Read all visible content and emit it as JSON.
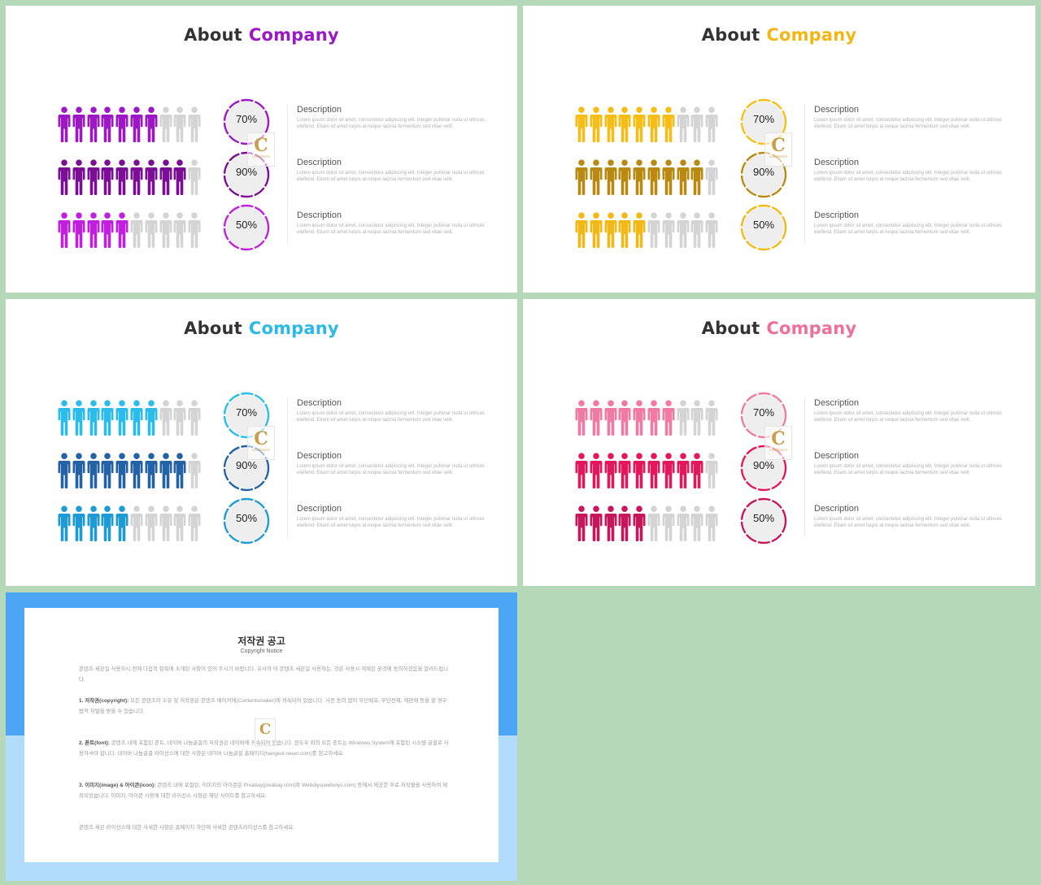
{
  "slides": [
    {
      "title_word1": "About",
      "title_word2": "Company",
      "accent": "#9b18c4",
      "rows": [
        {
          "percent_label": "70%",
          "filled": 7,
          "total": 10,
          "color": "#9b18c4",
          "ring_color": "#9b18c4",
          "description_title": "Description",
          "description_body": "Lorem ipsum dolor sit amet, consectetur adipiscing elit. Integer pulvinar nulla ut ultrices eleifend. Etiam sit amet turpis at neque lacinia fermentum sed vitae velit."
        },
        {
          "percent_label": "90%",
          "filled": 9,
          "total": 10,
          "color": "#7a0f96",
          "ring_color": "#7a0f96",
          "description_title": "Description",
          "description_body": "Lorem ipsum dolor sit amet, consectetur adipiscing elit. Integer pulvinar nulla ut ultrices eleifend. Etiam sit amet turpis at neque lacinia fermentum sed vitae velit."
        },
        {
          "percent_label": "50%",
          "filled": 5,
          "total": 10,
          "color": "#c21ee0",
          "ring_color": "#c21ee0",
          "description_title": "Description",
          "description_body": "Lorem ipsum dolor sit amet, consectetur adipiscing elit. Integer pulvinar nulla ut ultrices eleifend. Etiam sit amet turpis at neque lacinia fermentum sed vitae velit."
        }
      ]
    },
    {
      "title_word1": "About",
      "title_word2": "Company",
      "accent": "#f2b616",
      "rows": [
        {
          "percent_label": "70%",
          "filled": 7,
          "total": 10,
          "color": "#f5bd16",
          "ring_color": "#f5bd16",
          "description_title": "Description",
          "description_body": "Lorem ipsum dolor sit amet, consectetur adipiscing elit. Integer pulvinar nulla ut ultrices eleifend. Etiam sit amet turpis at neque lacinia fermentum sed vitae velit."
        },
        {
          "percent_label": "90%",
          "filled": 9,
          "total": 10,
          "color": "#b88a12",
          "ring_color": "#b88a12",
          "description_title": "Description",
          "description_body": "Lorem ipsum dolor sit amet, consectetur adipiscing elit. Integer pulvinar nulla ut ultrices eleifend. Etiam sit amet turpis at neque lacinia fermentum sed vitae velit."
        },
        {
          "percent_label": "50%",
          "filled": 5,
          "total": 10,
          "color": "#f2b916",
          "ring_color": "#f2b916",
          "description_title": "Description",
          "description_body": "Lorem ipsum dolor sit amet, consectetur adipiscing elit. Integer pulvinar nulla ut ultrices eleifend. Etiam sit amet turpis at neque lacinia fermentum sed vitae velit."
        }
      ]
    },
    {
      "title_word1": "About",
      "title_word2": "Company",
      "accent": "#2bb9ea",
      "rows": [
        {
          "percent_label": "70%",
          "filled": 7,
          "total": 10,
          "color": "#2cbcec",
          "ring_color": "#2cbcec",
          "description_title": "Description",
          "description_body": "Lorem ipsum dolor sit amet, consectetur adipiscing elit. Integer pulvinar nulla ut ultrices eleifend. Etiam sit amet turpis at neque lacinia fermentum sed vitae velit."
        },
        {
          "percent_label": "90%",
          "filled": 9,
          "total": 10,
          "color": "#2462a6",
          "ring_color": "#2462a6",
          "description_title": "Description",
          "description_body": "Lorem ipsum dolor sit amet, consectetur adipiscing elit. Integer pulvinar nulla ut ultrices eleifend. Etiam sit amet turpis at neque lacinia fermentum sed vitae velit."
        },
        {
          "percent_label": "50%",
          "filled": 5,
          "total": 10,
          "color": "#1e9ad4",
          "ring_color": "#1e9ad4",
          "description_title": "Description",
          "description_body": "Lorem ipsum dolor sit amet, consectetur adipiscing elit. Integer pulvinar nulla ut ultrices eleifend. Etiam sit amet turpis at neque lacinia fermentum sed vitae velit."
        }
      ]
    },
    {
      "title_word1": "About",
      "title_word2": "Company",
      "accent": "#ee6f9c",
      "rows": [
        {
          "percent_label": "70%",
          "filled": 7,
          "total": 10,
          "color": "#f07aa3",
          "ring_color": "#f07aa3",
          "description_title": "Description",
          "description_body": "Lorem ipsum dolor sit amet, consectetur adipiscing elit. Integer pulvinar nulla ut ultrices eleifend. Etiam sit amet turpis at neque lacinia fermentum sed vitae velit."
        },
        {
          "percent_label": "90%",
          "filled": 9,
          "total": 10,
          "color": "#e3185c",
          "ring_color": "#e3185c",
          "description_title": "Description",
          "description_body": "Lorem ipsum dolor sit amet, consectetur adipiscing elit. Integer pulvinar nulla ut ultrices eleifend. Etiam sit amet turpis at neque lacinia fermentum sed vitae velit."
        },
        {
          "percent_label": "50%",
          "filled": 5,
          "total": 10,
          "color": "#c8165c",
          "ring_color": "#c8165c",
          "description_title": "Description",
          "description_body": "Lorem ipsum dolor sit amet, consectetur adipiscing elit. Integer pulvinar nulla ut ultrices eleifend. Etiam sit amet turpis at neque lacinia fermentum sed vitae velit."
        }
      ]
    }
  ],
  "inactive_person_color": "#d4d4d4",
  "copyright": {
    "title": "저작권 공고",
    "subtitle": "Copyright Notice",
    "intro": "콘텐츠 세븐일 사용하시 전에 다음의 항목에 소개된 사항이 있어 주시기 바랍니다. 유사하 이 콘텐츠 세븐일 사용하는, 것은 사용시 게재된 본것에 동의하셨음을 알려드립니다.",
    "p1_head": "1. 저작권(copyright):",
    "p1_body": "모든 콘텐츠의 소유 및 저작권은 콘텐츠 메이커에(Contentsmaker)에 귀속되어 있습니다. 사전 동의 없이 무단배포, 무단전재, 재판매 등을 할 경우 법적 처벌을 받을 수 있습니다.",
    "p2_head": "2. 폰트(font):",
    "p2_body": "콘텐츠 내에 포함된 폰트, 네이버 나눔글꼴의 저작권은 네이버에 귀속되어 있습니다. 윈도우 외의 모든 폰트는 Windows System에 포함된 시스템 글꼴로 사용하셔야 합니다. 네이버 나눔글꼴 라이선스에 대한 사항은 네이버 나눔글꼴 홈페이지(hangeul.naver.com)를 참고하세요.",
    "p3_head": "3. 이미지(image) & 아이콘(icon):",
    "p3_body": "콘텐츠 내에 포함된, 이미지의 아이콘은 Pixabay(pixabay.com)와 Webolys(webolys.com) 등에서 제공한 무료 저작물을 사용하여 제작되었습니다. 이미지, 아이콘 사용에 대한 라이선스 사항은 해당 사이트를 참고하세요.",
    "outro": "콘텐츠 세븐 라이선스에 대한 사세한 사항은 홈페이지 하단에 사세한 콘텐츠라이선스를 참고하세요."
  }
}
